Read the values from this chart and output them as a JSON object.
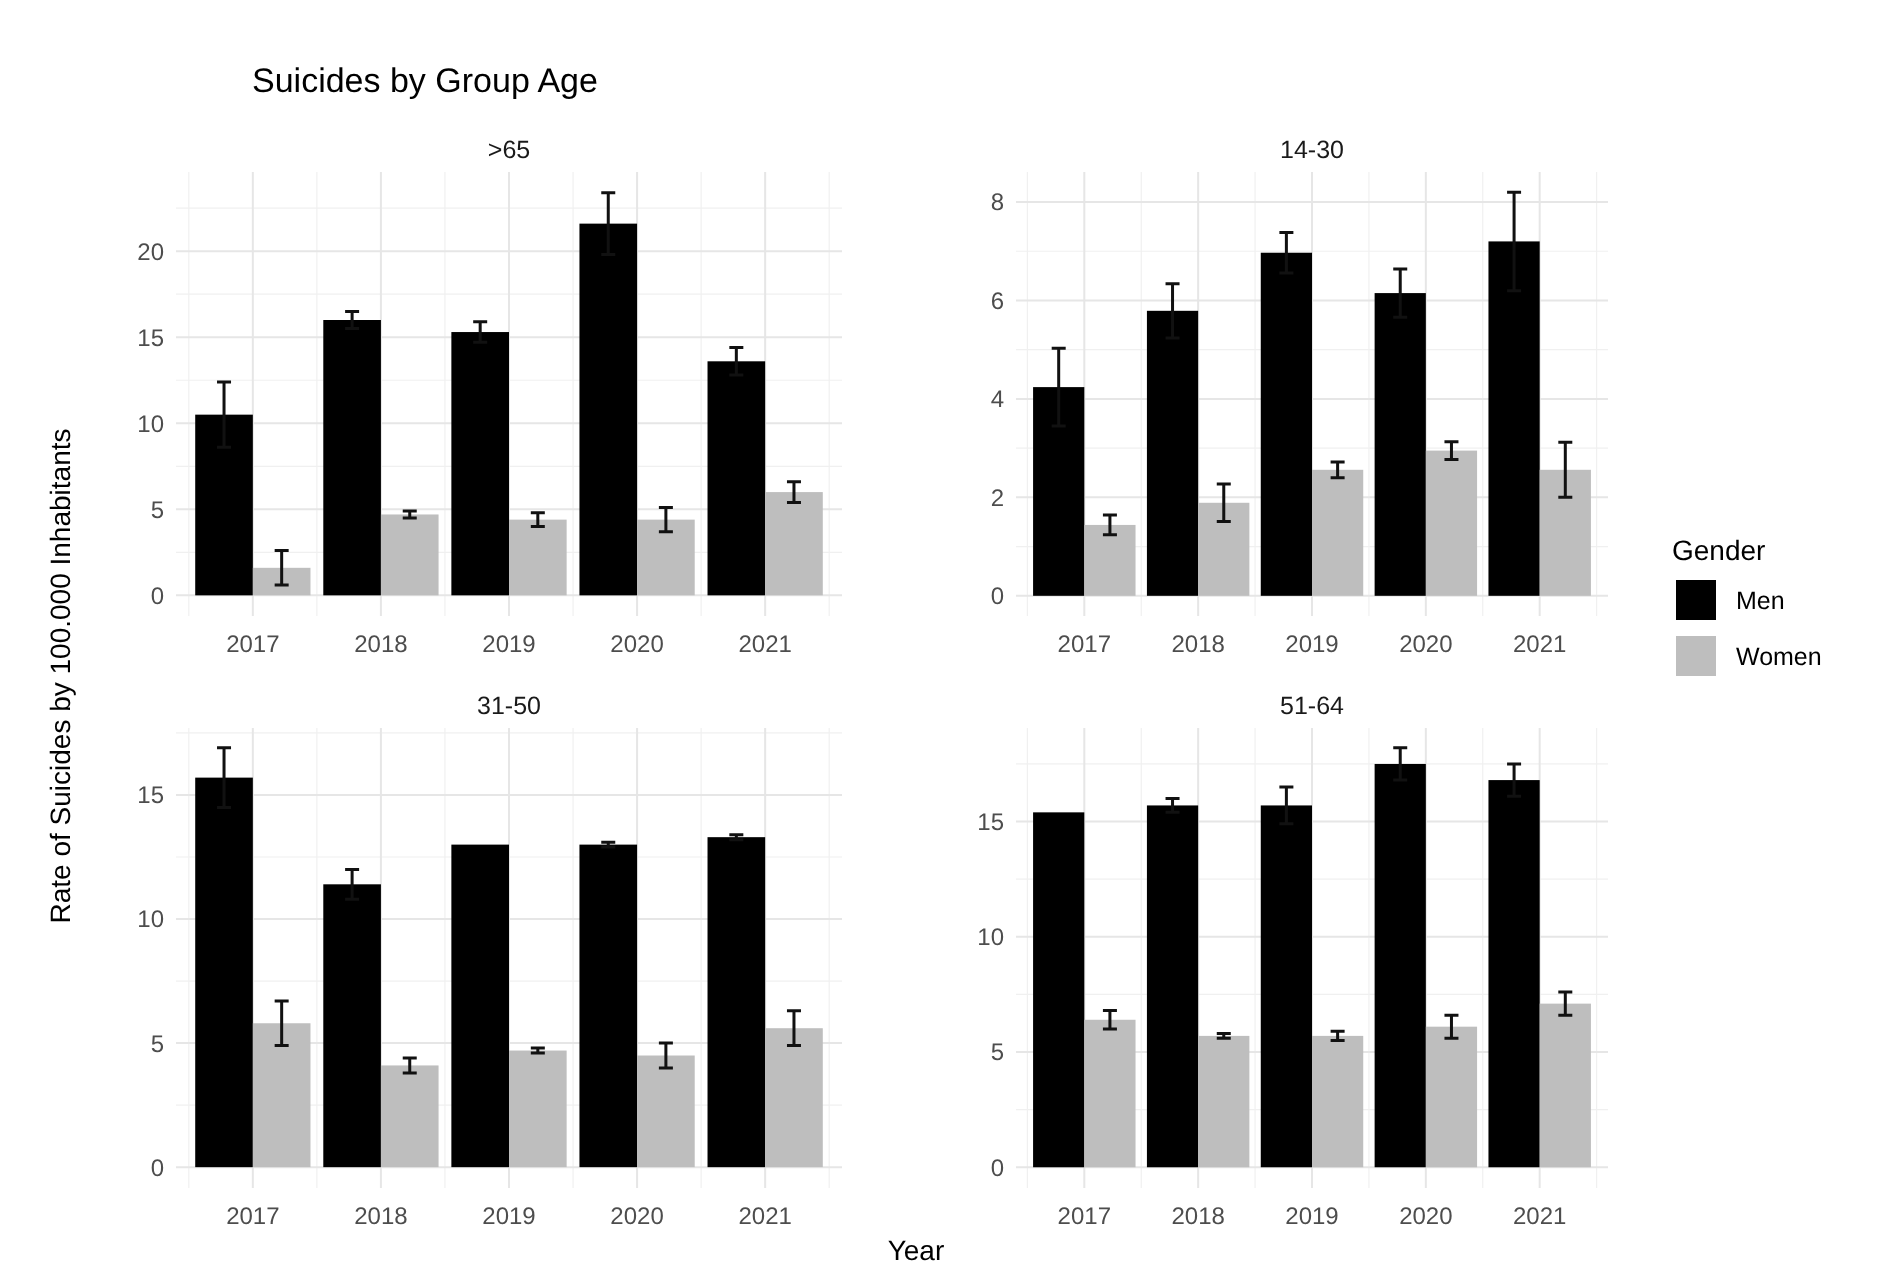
{
  "chart_data": [
    {
      "type": "bar",
      "title": ">65",
      "annotations": [
        "Suicides by Group Age"
      ],
      "categories": [
        "2017",
        "2018",
        "2019",
        "2020",
        "2021"
      ],
      "ylim": [
        -1.2,
        24.6
      ],
      "yticks": [
        0,
        5,
        10,
        15,
        20
      ],
      "grid": true,
      "legend": "right",
      "legend_title": "Gender",
      "series": [
        {
          "name": "Men",
          "color": "#000000",
          "values": [
            10.5,
            16.0,
            15.3,
            21.6,
            13.6
          ],
          "errors": [
            1.9,
            0.5,
            0.6,
            1.8,
            0.8
          ]
        },
        {
          "name": "Women",
          "color": "#bebebe",
          "values": [
            1.6,
            4.7,
            4.4,
            4.4,
            6.0
          ],
          "errors": [
            1.0,
            0.2,
            0.4,
            0.7,
            0.6
          ]
        }
      ]
    },
    {
      "type": "bar",
      "title": "14-30",
      "categories": [
        "2017",
        "2018",
        "2019",
        "2020",
        "2021"
      ],
      "ylim": [
        -0.41,
        8.61
      ],
      "yticks": [
        0,
        2,
        4,
        6,
        8
      ],
      "grid": true,
      "series": [
        {
          "color": "#000000",
          "values": [
            4.24,
            5.79,
            6.97,
            6.15,
            7.2
          ],
          "errors": [
            0.79,
            0.55,
            0.41,
            0.49,
            1.0
          ]
        },
        {
          "color": "#bebebe",
          "values": [
            1.44,
            1.89,
            2.56,
            2.95,
            2.56
          ],
          "errors": [
            0.2,
            0.38,
            0.16,
            0.18,
            0.56
          ]
        }
      ]
    },
    {
      "type": "bar",
      "title": "31-50",
      "xlabel": "Year",
      "ylabel": "Rate of Suicides by 100.000 Inhabitants",
      "categories": [
        "2017",
        "2018",
        "2019",
        "2020",
        "2021"
      ],
      "ylim": [
        -0.84,
        17.7
      ],
      "yticks": [
        0,
        5,
        10,
        15
      ],
      "grid": true,
      "series": [
        {
          "color": "#000000",
          "values": [
            15.7,
            11.4,
            13.0,
            13.0,
            13.3
          ],
          "errors": [
            1.2,
            0.6,
            null,
            0.1,
            0.1
          ]
        },
        {
          "color": "#bebebe",
          "values": [
            5.8,
            4.1,
            4.7,
            4.5,
            5.6
          ],
          "errors": [
            0.9,
            0.3,
            0.1,
            0.5,
            0.7
          ]
        }
      ]
    },
    {
      "type": "bar",
      "title": "51-64",
      "categories": [
        "2017",
        "2018",
        "2019",
        "2020",
        "2021"
      ],
      "ylim": [
        -0.9,
        19.06
      ],
      "yticks": [
        0,
        5,
        10,
        15
      ],
      "grid": true,
      "series": [
        {
          "color": "#000000",
          "values": [
            15.4,
            15.7,
            15.7,
            17.5,
            16.8
          ],
          "errors": [
            null,
            0.3,
            0.8,
            0.7,
            0.7
          ]
        },
        {
          "color": "#bebebe",
          "values": [
            6.4,
            5.7,
            5.7,
            6.1,
            7.1
          ],
          "errors": [
            0.4,
            0.1,
            0.2,
            0.5,
            0.5
          ]
        }
      ]
    }
  ]
}
